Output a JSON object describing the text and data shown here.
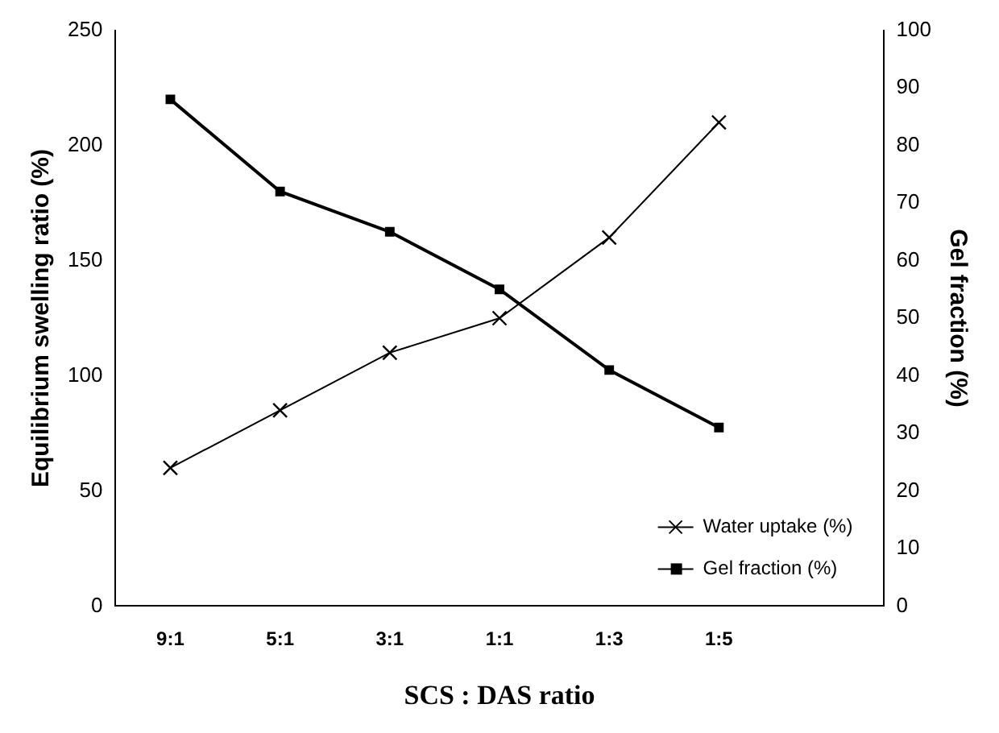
{
  "chart_data": {
    "type": "line",
    "xlabel": "SCS : DAS ratio",
    "ylabel": "Equilibrium swelling ratio (%)",
    "y2label": "Gel fraction (%)",
    "categories": [
      "9:1",
      "5:1",
      "3:1",
      "1:1",
      "1:3",
      "1:5",
      null
    ],
    "series": [
      {
        "name": "Water uptake (%)",
        "color": "#000000",
        "values": [
          60,
          85,
          110,
          125,
          160,
          210,
          null
        ],
        "marker": "cross",
        "axis": "y"
      },
      {
        "name": "Gel fraction (%)",
        "color": "#000000",
        "values": [
          88,
          72,
          65,
          55,
          41,
          31,
          null
        ],
        "marker": "square",
        "axis": "y2"
      }
    ],
    "ylim": [
      0,
      250
    ],
    "yticks": [
      0,
      50,
      100,
      150,
      200,
      250
    ],
    "y2lim": [
      0,
      100
    ],
    "y2ticks": [
      0,
      10,
      20,
      30,
      40,
      50,
      60,
      70,
      80,
      90,
      100
    ],
    "grid": false,
    "legend": "bottom right",
    "line_style": "solid"
  }
}
